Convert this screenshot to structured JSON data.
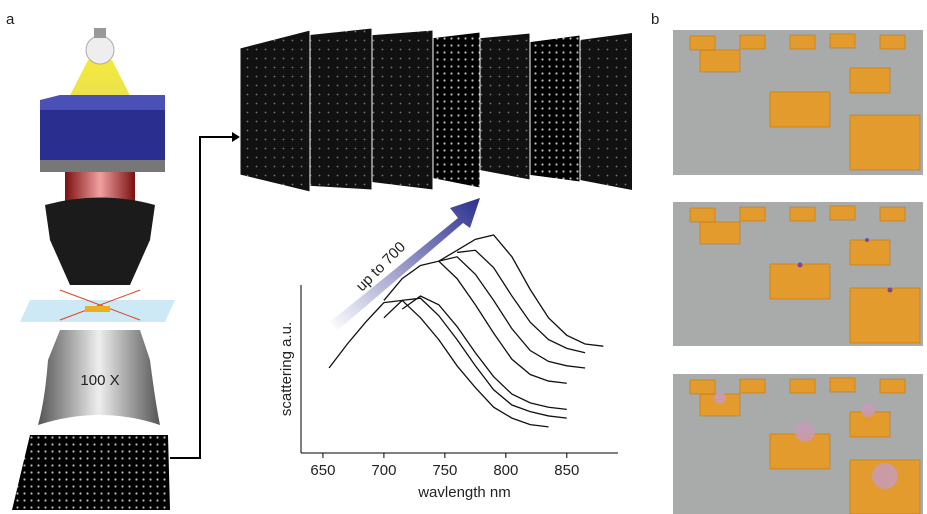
{
  "panel_labels": [
    "a",
    "b"
  ],
  "objective_label": "100 X",
  "chart_data": {
    "type": "line",
    "annotation": "up to 700",
    "x_label": "wavlength nm",
    "y_label": "scattering a.u.",
    "x": [
      655,
      670,
      685,
      700,
      715,
      730,
      745,
      760,
      775,
      790,
      805,
      820,
      835,
      850,
      865,
      880
    ],
    "xlim": [
      632,
      892
    ],
    "xticks": [
      650,
      700,
      750,
      800,
      850
    ],
    "ylim": [
      0,
      1
    ],
    "series": [
      {
        "color": "#111111",
        "values": [
          0.39,
          0.5,
          0.6,
          0.69,
          0.7,
          0.62,
          0.52,
          0.4,
          0.3,
          0.21,
          0.16,
          0.13,
          0.12,
          null,
          null,
          null
        ]
      },
      {
        "color": "#111111",
        "values": [
          null,
          null,
          null,
          0.62,
          0.7,
          0.71,
          0.63,
          0.52,
          0.4,
          0.29,
          0.22,
          0.19,
          0.17,
          0.16,
          null,
          null
        ]
      },
      {
        "color": "#111111",
        "values": [
          null,
          null,
          null,
          null,
          0.66,
          0.72,
          0.68,
          0.58,
          0.46,
          0.35,
          0.27,
          0.23,
          0.21,
          0.2,
          null,
          null
        ]
      },
      {
        "color": "#111111",
        "values": [
          null,
          null,
          null,
          0.7,
          0.8,
          0.86,
          0.88,
          0.8,
          0.68,
          0.55,
          0.43,
          0.36,
          0.33,
          0.32,
          null,
          null
        ]
      },
      {
        "color": "#111111",
        "values": [
          null,
          null,
          null,
          null,
          null,
          null,
          0.88,
          0.9,
          0.82,
          0.7,
          0.57,
          0.47,
          0.42,
          0.4,
          0.39,
          null
        ]
      },
      {
        "color": "#111111",
        "values": [
          null,
          null,
          null,
          null,
          null,
          null,
          null,
          0.92,
          0.93,
          0.85,
          0.72,
          0.6,
          0.52,
          0.48,
          0.46,
          null
        ]
      },
      {
        "color": "#111111",
        "values": [
          null,
          null,
          null,
          null,
          null,
          null,
          0.88,
          0.93,
          0.98,
          1.0,
          0.9,
          0.75,
          0.62,
          0.54,
          0.5,
          0.49
        ]
      }
    ]
  }
}
